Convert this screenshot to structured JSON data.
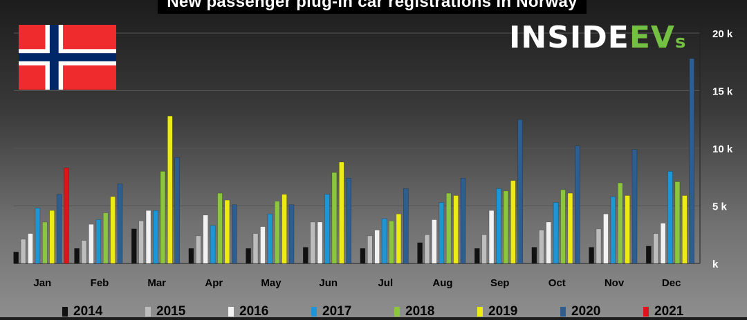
{
  "title": "New passenger plug-in car registrations in Norway",
  "brand": {
    "text_main": "INSIDE",
    "text_accent": "EV",
    "text_tail": "s"
  },
  "icons": {
    "flag": "norway-flag-icon"
  },
  "colors": {
    "2014": "#111111",
    "2015": "#bdbdbd",
    "2016": "#f2f2f2",
    "2017": "#1e96d6",
    "2018": "#8cc63f",
    "2019": "#ecec14",
    "2020": "#2e5d8f",
    "2021": "#e0121a"
  },
  "chart_data": {
    "type": "bar",
    "title": "New passenger plug-in car registrations in Norway",
    "categories": [
      "Jan",
      "Feb",
      "Mar",
      "Apr",
      "May",
      "Jun",
      "Jul",
      "Aug",
      "Sep",
      "Oct",
      "Nov",
      "Dec"
    ],
    "ylim": [
      0,
      20000
    ],
    "yticks": [
      "k",
      "5 k",
      "10 k",
      "15 k",
      "20 k"
    ],
    "grid": true,
    "legend_position": "bottom",
    "series": [
      {
        "name": "2014",
        "values": [
          1000,
          1300,
          3000,
          1300,
          1300,
          1400,
          1300,
          1800,
          1300,
          1400,
          1400,
          1500
        ]
      },
      {
        "name": "2015",
        "values": [
          2100,
          2000,
          3700,
          2400,
          2600,
          3600,
          2400,
          2500,
          2500,
          2900,
          3000,
          2600
        ]
      },
      {
        "name": "2016",
        "values": [
          2600,
          3400,
          4600,
          4200,
          3200,
          3600,
          2900,
          3800,
          4600,
          3600,
          4300,
          3500
        ]
      },
      {
        "name": "2017",
        "values": [
          4800,
          3800,
          4600,
          3300,
          4300,
          6000,
          3900,
          5300,
          6500,
          5300,
          5800,
          8000
        ]
      },
      {
        "name": "2018",
        "values": [
          3600,
          4400,
          8000,
          6100,
          5400,
          7900,
          3700,
          6100,
          6300,
          6400,
          7000,
          7100
        ]
      },
      {
        "name": "2019",
        "values": [
          4600,
          5800,
          12800,
          5500,
          6000,
          8800,
          4300,
          5900,
          7200,
          6100,
          5900,
          5900
        ]
      },
      {
        "name": "2020",
        "values": [
          6000,
          6900,
          9200,
          5100,
          5100,
          7400,
          6500,
          7400,
          12500,
          10200,
          9900,
          17800
        ]
      },
      {
        "name": "2021",
        "values": [
          8300,
          null,
          null,
          null,
          null,
          null,
          null,
          null,
          null,
          null,
          null,
          null
        ]
      }
    ]
  }
}
